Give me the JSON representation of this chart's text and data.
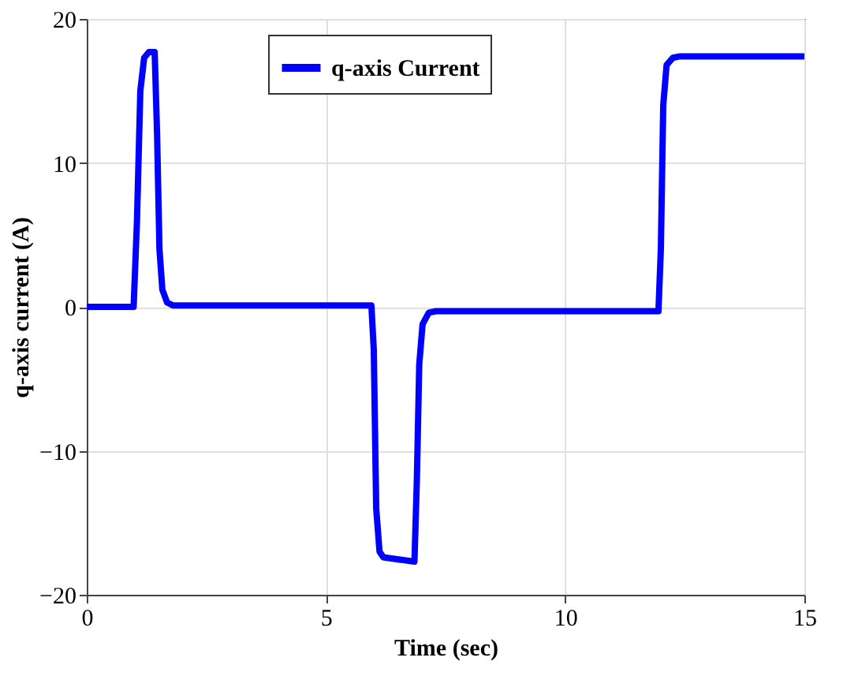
{
  "chart_data": {
    "type": "line",
    "xlabel": "Time (sec)",
    "ylabel": "q-axis current (A)",
    "x": [
      0,
      0.98,
      1.05,
      1.12,
      1.2,
      1.3,
      1.42,
      1.47,
      1.52,
      1.58,
      1.68,
      1.8,
      3,
      5.95,
      6.0,
      6.05,
      6.12,
      6.2,
      6.85,
      6.9,
      6.95,
      7.02,
      7.15,
      7.3,
      9,
      11.95,
      12.0,
      12.05,
      12.12,
      12.25,
      12.4,
      15
    ],
    "series": [
      {
        "name": "q-axis Current",
        "color": "#0000ff",
        "values": [
          0,
          0,
          6,
          15,
          17.3,
          17.7,
          17.7,
          12,
          4,
          1.2,
          0.3,
          0.1,
          0.1,
          0.1,
          -3,
          -14,
          -17,
          -17.4,
          -17.7,
          -12,
          -4,
          -1.2,
          -0.4,
          -0.3,
          -0.3,
          -0.3,
          4,
          14,
          16.8,
          17.3,
          17.4,
          17.4
        ]
      }
    ],
    "xlim": [
      0,
      15
    ],
    "xticks": [
      0,
      5,
      10,
      15
    ],
    "ylim": [
      -20,
      20
    ],
    "yticks": [
      -20,
      -10,
      0,
      10,
      20
    ],
    "grid": true,
    "legend": "top",
    "line_style": "solid",
    "marker": "none"
  }
}
